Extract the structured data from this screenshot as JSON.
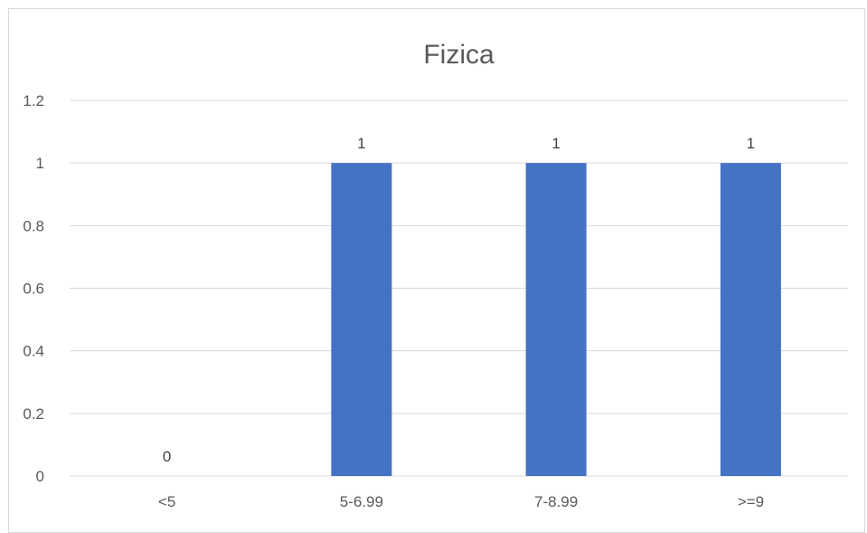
{
  "chart_data": {
    "type": "bar",
    "title": "Fizica",
    "xlabel": "",
    "ylabel": "",
    "categories": [
      "<5",
      "5-6.99",
      "7-8.99",
      ">=9"
    ],
    "values": [
      0,
      1,
      1,
      1
    ],
    "data_labels": [
      "0",
      "1",
      "1",
      "1"
    ],
    "ylim": [
      0,
      1.2
    ],
    "yticks": [
      0,
      0.2,
      0.4,
      0.6,
      0.8,
      1,
      1.2
    ],
    "ytick_labels": [
      "0",
      "0.2",
      "0.4",
      "0.6",
      "0.8",
      "1",
      "1.2"
    ],
    "grid": true,
    "legend": "none",
    "bar_color": "#4472C4"
  }
}
